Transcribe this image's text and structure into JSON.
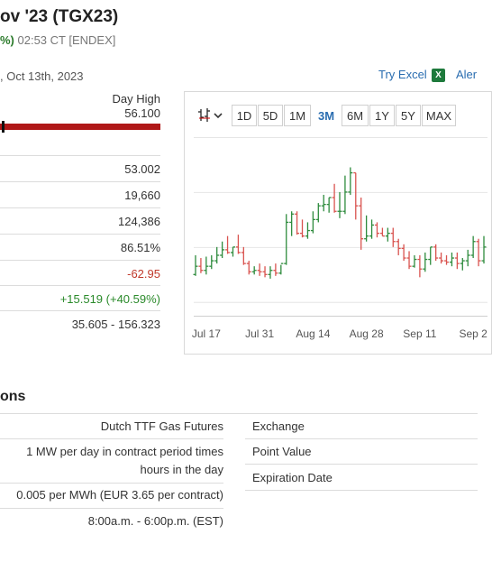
{
  "header": {
    "title": "ov '23 (TGX23)",
    "change_pct": "%)",
    "time_source": " 02:53 CT [ENDEX]",
    "date_line": ", Oct 13th, 2023",
    "try_excel": "Try Excel",
    "excel_icon_text": "X",
    "alerts_link": "Aler"
  },
  "day_range": {
    "label": "Day High",
    "value": "56.100",
    "marker_fraction": 0.01
  },
  "stats": [
    {
      "value": "53.002",
      "tone": ""
    },
    {
      "value": "19,660",
      "tone": ""
    },
    {
      "value": "124,386",
      "tone": ""
    },
    {
      "value": "86.51%",
      "tone": ""
    },
    {
      "value": "-62.95",
      "tone": "neg"
    },
    {
      "value": "+15.519 (+40.59%)",
      "tone": "pos"
    },
    {
      "value": "35.605 - 156.323",
      "tone": ""
    }
  ],
  "chart": {
    "periods": [
      "1D",
      "5D",
      "1M",
      "3M",
      "6M",
      "1Y",
      "5Y",
      "MAX"
    ],
    "active_period": "3M",
    "x_ticks": [
      "Jul 17",
      "Jul 31",
      "Aug 14",
      "Aug 28",
      "Sep 11",
      "Sep 2"
    ],
    "colors": {
      "up": "#2e8b3d",
      "down": "#d9534f",
      "grid": "#e6e6e6"
    }
  },
  "chart_data": {
    "type": "ohlc",
    "x": [
      "Jul 13",
      "Jul 14",
      "Jul 17",
      "Jul 18",
      "Jul 19",
      "Jul 20",
      "Jul 21",
      "Jul 24",
      "Jul 25",
      "Jul 26",
      "Jul 27",
      "Jul 28",
      "Jul 31",
      "Aug 1",
      "Aug 2",
      "Aug 3",
      "Aug 4",
      "Aug 7",
      "Aug 8",
      "Aug 9",
      "Aug 10",
      "Aug 11",
      "Aug 14",
      "Aug 15",
      "Aug 16",
      "Aug 17",
      "Aug 18",
      "Aug 21",
      "Aug 22",
      "Aug 23",
      "Aug 24",
      "Aug 25",
      "Aug 28",
      "Aug 29",
      "Aug 30",
      "Aug 31",
      "Sep 1",
      "Sep 4",
      "Sep 5",
      "Sep 6",
      "Sep 7",
      "Sep 8",
      "Sep 11",
      "Sep 12",
      "Sep 13",
      "Sep 14",
      "Sep 15",
      "Sep 18",
      "Sep 19",
      "Sep 20",
      "Sep 21",
      "Sep 22",
      "Sep 25",
      "Sep 26",
      "Sep 27"
    ],
    "open": [
      30.0,
      33.0,
      31.5,
      33.0,
      35.0,
      37.0,
      39.0,
      38.0,
      40.0,
      38.0,
      34.0,
      31.0,
      31.5,
      31.0,
      30.0,
      31.5,
      30.5,
      34.0,
      49.0,
      52.0,
      45.0,
      44.0,
      46.0,
      50.0,
      55.0,
      55.5,
      58.0,
      53.0,
      53.0,
      60.0,
      67.0,
      55.0,
      43.0,
      44.0,
      48.0,
      45.0,
      44.0,
      45.0,
      42.0,
      39.5,
      36.0,
      33.0,
      35.5,
      32.0,
      35.5,
      40.0,
      36.0,
      35.0,
      34.5,
      36.0,
      34.0,
      35.0,
      37.0,
      42.0,
      35.0
    ],
    "high": [
      37.0,
      36.0,
      36.5,
      37.0,
      40.0,
      42.0,
      44.0,
      40.0,
      44.5,
      40.0,
      35.0,
      33.0,
      34.0,
      33.0,
      33.0,
      34.0,
      33.5,
      52.0,
      53.0,
      53.0,
      50.0,
      49.0,
      53.0,
      56.0,
      59.0,
      58.0,
      63.0,
      60.0,
      66.0,
      69.0,
      67.0,
      58.0,
      51.5,
      50.0,
      49.0,
      47.0,
      47.0,
      47.0,
      43.0,
      41.0,
      38.5,
      37.0,
      37.0,
      38.0,
      40.0,
      41.0,
      38.0,
      37.0,
      38.0,
      38.0,
      36.0,
      39.0,
      44.0,
      43.0,
      44.0
    ],
    "low": [
      29.5,
      30.5,
      30.0,
      32.0,
      34.0,
      36.0,
      37.5,
      36.5,
      37.5,
      33.5,
      30.0,
      30.0,
      29.5,
      29.0,
      28.5,
      29.5,
      30.0,
      33.5,
      44.0,
      44.5,
      43.5,
      43.0,
      45.0,
      49.0,
      53.0,
      52.5,
      52.5,
      50.5,
      52.0,
      59.0,
      50.0,
      39.0,
      42.0,
      43.0,
      43.5,
      44.0,
      42.0,
      40.0,
      37.0,
      35.0,
      32.0,
      32.5,
      29.0,
      31.0,
      33.5,
      35.0,
      34.0,
      33.5,
      33.0,
      32.0,
      31.5,
      33.0,
      36.0,
      33.0,
      34.0
    ],
    "close": [
      33.0,
      31.5,
      33.0,
      35.0,
      37.0,
      39.0,
      38.0,
      40.0,
      38.0,
      34.0,
      31.0,
      31.5,
      31.0,
      30.0,
      31.5,
      30.5,
      34.0,
      49.0,
      52.0,
      45.0,
      44.0,
      46.0,
      50.0,
      55.0,
      55.5,
      58.0,
      53.0,
      53.0,
      60.0,
      67.0,
      55.0,
      43.0,
      44.0,
      48.0,
      45.0,
      44.0,
      45.0,
      42.0,
      39.5,
      36.0,
      33.0,
      35.5,
      32.0,
      35.5,
      40.0,
      36.0,
      35.0,
      34.5,
      36.0,
      34.0,
      35.0,
      37.0,
      42.0,
      35.0,
      40.0
    ],
    "ylim": [
      15,
      80
    ],
    "grid": true,
    "legend": "none",
    "xlabel": "",
    "ylabel": ""
  },
  "specs": {
    "section_title": "ons",
    "left": [
      {
        "value": "Dutch TTF Gas Futures"
      },
      {
        "value": "1 MW per day in contract period times",
        "value2": "hours in the day"
      },
      {
        "value": "0.005 per MWh (EUR 3.65 per contract)"
      },
      {
        "value": "8:00a.m. - 6:00p.m. (EST)"
      }
    ],
    "right": [
      {
        "label": "Exchange"
      },
      {
        "label": "Point Value"
      },
      {
        "label": "Expiration Date"
      }
    ]
  }
}
